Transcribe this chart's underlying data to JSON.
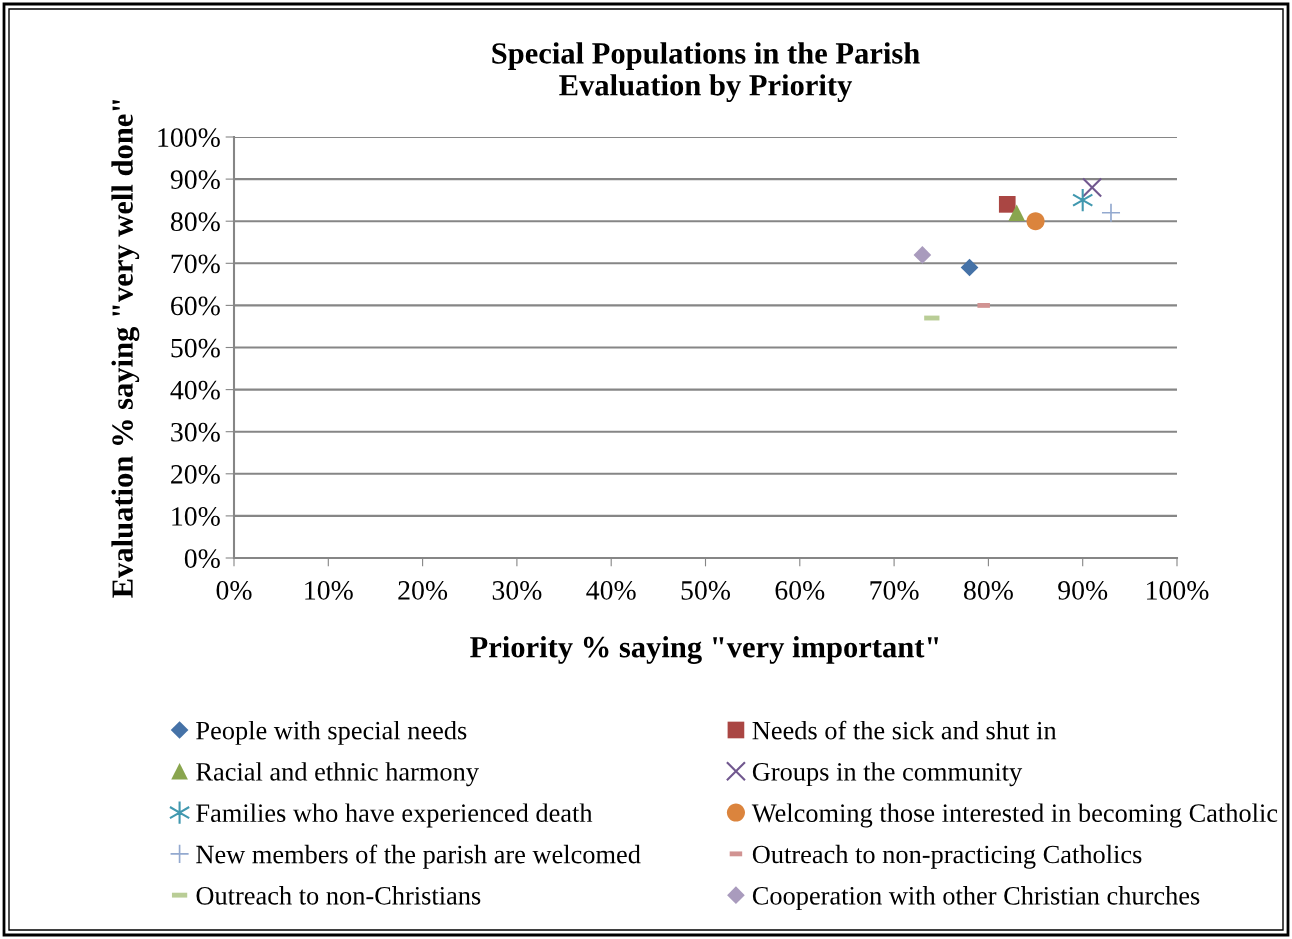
{
  "chart_data": {
    "type": "scatter",
    "title": "Special Populations in the Parish\nEvaluation by Priority",
    "xlabel": "Priority % saying \"very important\"",
    "ylabel": "Evaluation % saying \"very well done\"",
    "xlim": [
      0,
      100
    ],
    "ylim": [
      0,
      100
    ],
    "xticks": [
      {
        "value": 0,
        "label": "0%"
      },
      {
        "value": 10,
        "label": "10%"
      },
      {
        "value": 20,
        "label": "20%"
      },
      {
        "value": 30,
        "label": "30%"
      },
      {
        "value": 40,
        "label": "40%"
      },
      {
        "value": 50,
        "label": "50%"
      },
      {
        "value": 60,
        "label": "60%"
      },
      {
        "value": 70,
        "label": "70%"
      },
      {
        "value": 80,
        "label": "80%"
      },
      {
        "value": 90,
        "label": "90%"
      },
      {
        "value": 100,
        "label": "100%"
      }
    ],
    "yticks": [
      {
        "value": 0,
        "label": "0%"
      },
      {
        "value": 10,
        "label": "10%"
      },
      {
        "value": 20,
        "label": "20%"
      },
      {
        "value": 30,
        "label": "30%"
      },
      {
        "value": 40,
        "label": "40%"
      },
      {
        "value": 50,
        "label": "50%"
      },
      {
        "value": 60,
        "label": "60%"
      },
      {
        "value": 70,
        "label": "70%"
      },
      {
        "value": 80,
        "label": "80%"
      },
      {
        "value": 90,
        "label": "90%"
      },
      {
        "value": 100,
        "label": "100%"
      }
    ],
    "grid": "y",
    "legend": "bottom",
    "series": [
      {
        "name": "People with special needs",
        "color": "#4572a7",
        "marker": "diamond",
        "x": [
          78
        ],
        "values": [
          69
        ]
      },
      {
        "name": "Needs of the sick and shut in",
        "color": "#aa4643",
        "marker": "square",
        "x": [
          82
        ],
        "values": [
          84
        ]
      },
      {
        "name": "Racial and ethnic harmony",
        "color": "#89a54e",
        "marker": "triangle",
        "x": [
          83
        ],
        "values": [
          82
        ]
      },
      {
        "name": "Groups in the community",
        "color": "#71588f",
        "marker": "x",
        "x": [
          91
        ],
        "values": [
          88
        ]
      },
      {
        "name": "Families who have experienced death",
        "color": "#4198af",
        "marker": "cross",
        "x": [
          90
        ],
        "values": [
          85
        ]
      },
      {
        "name": "Welcoming those interested in becoming Catholic",
        "color": "#db843d",
        "marker": "circle",
        "x": [
          85
        ],
        "values": [
          80
        ]
      },
      {
        "name": "New members of the parish are welcomed",
        "color": "#93a9cf",
        "marker": "plus",
        "x": [
          93
        ],
        "values": [
          82
        ]
      },
      {
        "name": "Outreach to non-practicing Catholics",
        "color": "#d19392",
        "marker": "square",
        "x": [
          79.5
        ],
        "values": [
          60
        ]
      },
      {
        "name": "Outreach to non-Christians",
        "color": "#b9cd96",
        "marker": "square",
        "x": [
          74
        ],
        "values": [
          57
        ]
      },
      {
        "name": "Cooperation with other Christian churches",
        "color": "#a99bbd",
        "marker": "diamond",
        "x": [
          73
        ],
        "values": [
          72
        ]
      }
    ]
  }
}
